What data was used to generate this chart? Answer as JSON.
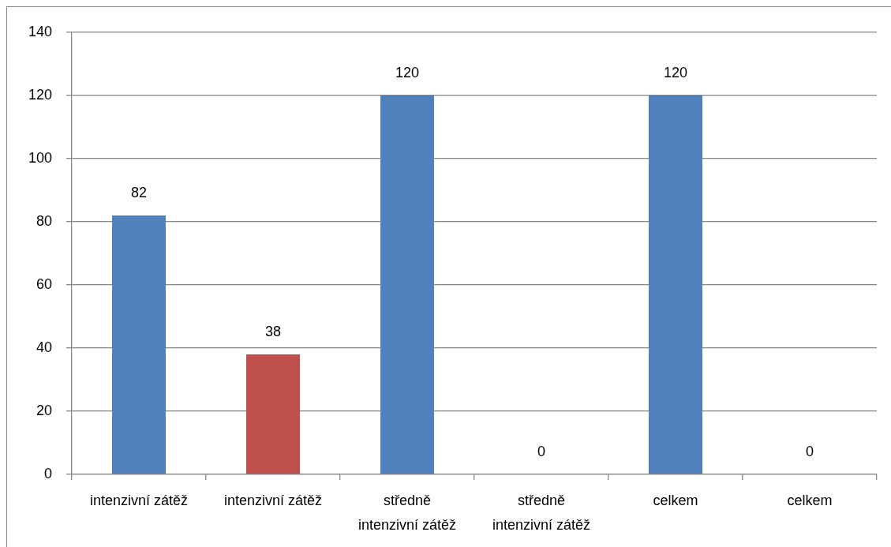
{
  "chart_data": {
    "type": "bar",
    "categories": [
      "intenzivní zátěž",
      "intenzivní zátěž",
      "středně intenzivní zátěž",
      "středně intenzivní zátěž",
      "celkem",
      "celkem"
    ],
    "values": [
      82,
      38,
      120,
      0,
      120,
      0
    ],
    "colors": [
      "#4f81bd",
      "#c0504d",
      "#4f81bd",
      "#4f81bd",
      "#4f81bd",
      "#4f81bd"
    ],
    "ylim": [
      0,
      140
    ],
    "yticks": [
      0,
      20,
      40,
      60,
      80,
      100,
      120,
      140
    ],
    "grid": "y",
    "data_labels": true
  }
}
